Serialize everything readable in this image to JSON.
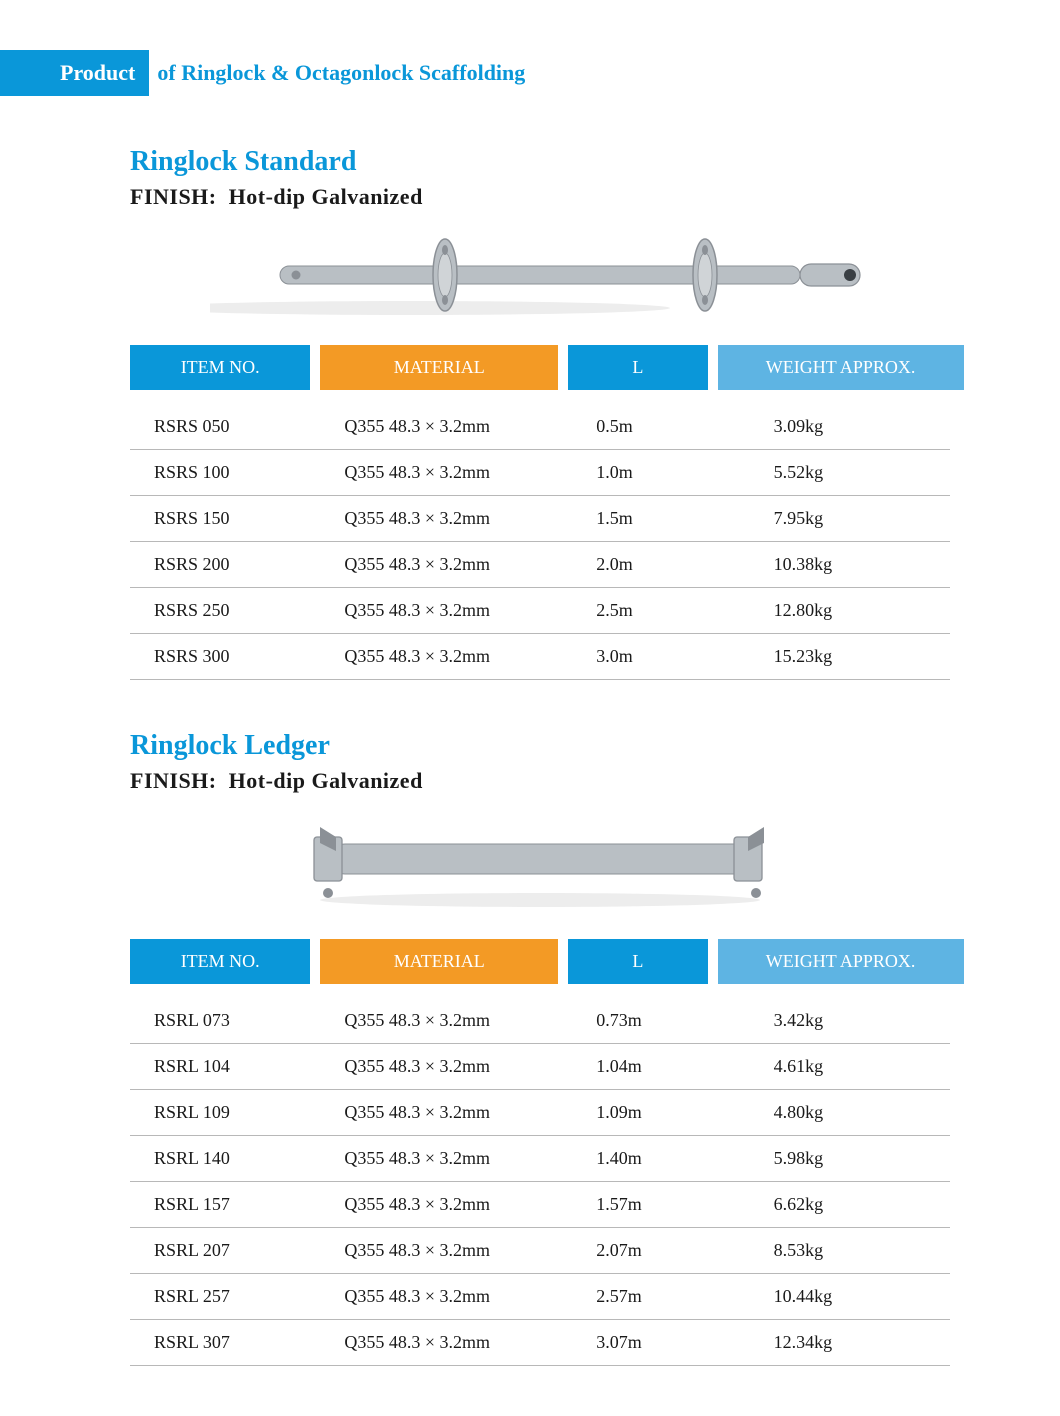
{
  "header": {
    "badge": "Product",
    "rest": "of  Ringlock & Octagonlock Scaffolding"
  },
  "colors": {
    "brand_blue": "#0a97d9",
    "light_blue": "#5eb4e3",
    "orange": "#f39a25",
    "row_border": "#b8b8b8",
    "text": "#1a1a1a",
    "bg": "#ffffff",
    "product_gray": "#b9bfc4",
    "product_dark": "#8b9096"
  },
  "table_headers": {
    "item_no": "ITEM NO.",
    "material": "MATERIAL",
    "l": "L",
    "weight": "WEIGHT APPROX."
  },
  "header_colors": [
    "#0a97d9",
    "#f39a25",
    "#0a97d9",
    "#5eb4e3"
  ],
  "sections": [
    {
      "title": "Ringlock Standard",
      "finish_label": "FINISH:",
      "finish_value": "Hot-dip Galvanized",
      "image": "standard",
      "rows": [
        {
          "item": "RSRS 050",
          "material": "Q355  48.3 × 3.2mm",
          "l": "0.5m",
          "weight": "3.09kg"
        },
        {
          "item": "RSRS 100",
          "material": "Q355  48.3 × 3.2mm",
          "l": "1.0m",
          "weight": "5.52kg"
        },
        {
          "item": "RSRS 150",
          "material": "Q355  48.3 × 3.2mm",
          "l": "1.5m",
          "weight": "7.95kg"
        },
        {
          "item": "RSRS 200",
          "material": "Q355  48.3 × 3.2mm",
          "l": "2.0m",
          "weight": "10.38kg"
        },
        {
          "item": "RSRS 250",
          "material": "Q355  48.3 × 3.2mm",
          "l": "2.5m",
          "weight": "12.80kg"
        },
        {
          "item": "RSRS 300",
          "material": "Q355  48.3 × 3.2mm",
          "l": "3.0m",
          "weight": "15.23kg"
        }
      ]
    },
    {
      "title": "Ringlock Ledger",
      "finish_label": "FINISH:",
      "finish_value": "Hot-dip Galvanized",
      "image": "ledger",
      "rows": [
        {
          "item": "RSRL 073",
          "material": "Q355  48.3 × 3.2mm",
          "l": "0.73m",
          "weight": "3.42kg"
        },
        {
          "item": "RSRL 104",
          "material": "Q355  48.3 × 3.2mm",
          "l": "1.04m",
          "weight": "4.61kg"
        },
        {
          "item": "RSRL 109",
          "material": "Q355  48.3 × 3.2mm",
          "l": "1.09m",
          "weight": "4.80kg"
        },
        {
          "item": "RSRL 140",
          "material": "Q355  48.3 × 3.2mm",
          "l": "1.40m",
          "weight": "5.98kg"
        },
        {
          "item": "RSRL 157",
          "material": "Q355  48.3 × 3.2mm",
          "l": "1.57m",
          "weight": "6.62kg"
        },
        {
          "item": "RSRL 207",
          "material": "Q355  48.3 × 3.2mm",
          "l": "2.07m",
          "weight": "8.53kg"
        },
        {
          "item": "RSRL 257",
          "material": "Q355  48.3 × 3.2mm",
          "l": "2.57m",
          "weight": "10.44kg"
        },
        {
          "item": "RSRL 307",
          "material": "Q355  48.3 × 3.2mm",
          "l": "3.07m",
          "weight": "12.34kg"
        }
      ]
    }
  ]
}
